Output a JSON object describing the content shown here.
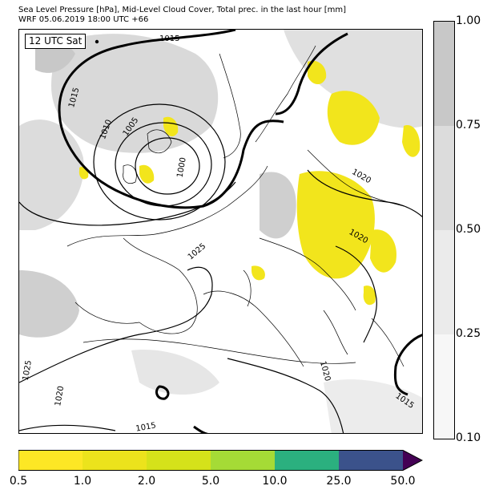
{
  "header": {
    "line1": "Sea Level Pressure [hPa], Mid-Level Cloud Cover, Total prec. in the last hour [mm]",
    "line2": "WRF 05.06.2019 18:00 UTC +66"
  },
  "map": {
    "time_label": "12 UTC Sat",
    "isobar_labels": [
      "1015",
      "1015",
      "1010",
      "1005",
      "1000",
      "1020",
      "1020",
      "1025",
      "1025",
      "1020",
      "1020",
      "1015",
      "1015"
    ]
  },
  "cloud_colorbar": {
    "ticks": [
      "1.00",
      "0.75",
      "0.50",
      "0.25",
      "0.10"
    ],
    "colors": [
      "#c8c8c8",
      "#dcdcdc",
      "#ebebeb",
      "#f7f7f7"
    ]
  },
  "precip_colorbar": {
    "ticks": [
      "0.5",
      "1.0",
      "2.0",
      "5.0",
      "10.0",
      "25.0",
      "50.0"
    ],
    "colors": [
      "#fde725",
      "#ece31c",
      "#d5e21a",
      "#a5db36",
      "#2bb07f",
      "#3b528b",
      "#440154"
    ]
  }
}
